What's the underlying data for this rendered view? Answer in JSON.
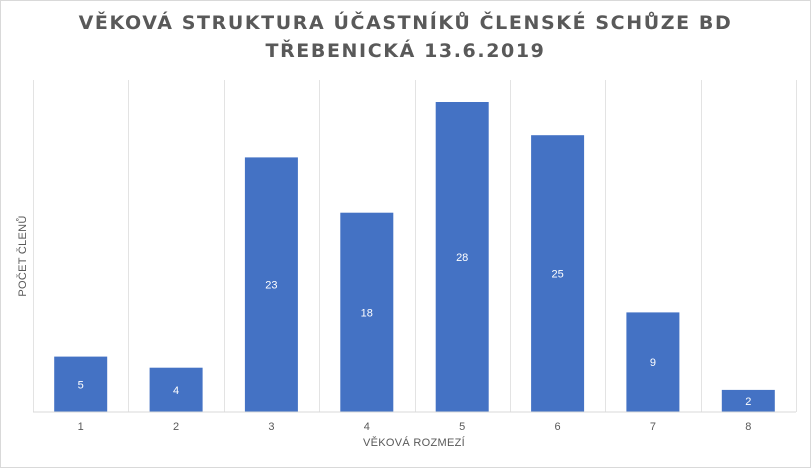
{
  "chart_data": {
    "type": "bar",
    "title_line1": "VĚKOVÁ STRUKTURA ÚČASTNÍKŮ ČLENSKÉ SCHŮZE BD",
    "title_line2": "TŘEBENICKÁ 13.6.2019",
    "xlabel": "VĚKOVÁ ROZMEZÍ",
    "ylabel": "POČET ČLENŮ",
    "categories": [
      "1",
      "2",
      "3",
      "4",
      "5",
      "6",
      "7",
      "8"
    ],
    "values": [
      5,
      4,
      23,
      18,
      28,
      25,
      9,
      2
    ],
    "ylim": [
      0,
      28
    ],
    "bar_color": "#4472c4",
    "data_label_color": "#ffffff",
    "grid": "vertical category separators",
    "legend": "none"
  }
}
